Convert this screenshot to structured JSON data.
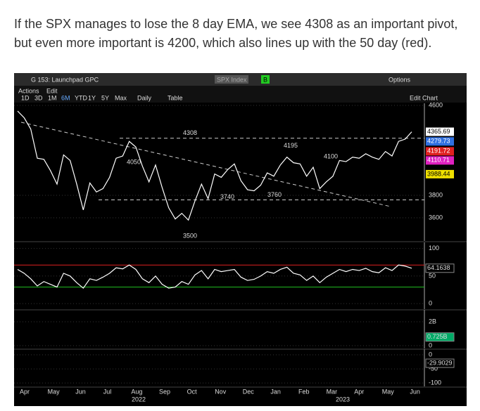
{
  "text": {
    "line1": "If the SPX manages to lose the 8 day EMA, we see 4308 as an important pivot,",
    "line2": "but even more important is 4200, which also lines up with the 50 day (red)."
  },
  "window": {
    "title": "G 153: Launchpad GPC",
    "ticker": "SPX Index",
    "badge": "B",
    "options": "Options",
    "menu": [
      "Actions",
      "Edit"
    ],
    "ranges": [
      "1D",
      "3D",
      "1M",
      "6M",
      "YTD",
      "1Y",
      "5Y",
      "Max"
    ],
    "period": "Daily",
    "table": "Table",
    "edit": "Edit Chart"
  },
  "chart_data": {
    "type": "line",
    "price": {
      "color": "#ffffff",
      "values": [
        4550,
        4490,
        4390,
        4130,
        4120,
        4020,
        3900,
        4160,
        4110,
        3900,
        3670,
        3910,
        3830,
        3860,
        3960,
        4130,
        4150,
        4280,
        4230,
        4060,
        3920,
        4070,
        3870,
        3690,
        3590,
        3640,
        3580,
        3750,
        3900,
        3770,
        3990,
        3960,
        4030,
        4080,
        3930,
        3850,
        3840,
        3890,
        4000,
        3970,
        4070,
        4140,
        4090,
        4080,
        3970,
        4050,
        3860,
        3920,
        3970,
        4110,
        4100,
        4140,
        4130,
        4170,
        4140,
        4120,
        4190,
        4150,
        4280,
        4300,
        4365
      ],
      "ylim": [
        3394,
        4619
      ],
      "yticks": [
        3600,
        3800,
        4600
      ],
      "levels": [
        4308,
        4050,
        4195,
        4100,
        3760,
        3740,
        3500
      ],
      "last_labels": [
        {
          "value": 4365.69,
          "color": "#ffffff"
        },
        {
          "value": 4279.73,
          "color": "#2f6fe0"
        },
        {
          "value": 4191.72,
          "color": "#e02020"
        },
        {
          "value": 4110.71,
          "color": "#e020c0"
        },
        {
          "value": 3988.44,
          "color": "#f0e000"
        }
      ]
    },
    "rsi": {
      "color": "#ffffff",
      "values": [
        62,
        55,
        45,
        32,
        40,
        35,
        30,
        55,
        50,
        38,
        28,
        45,
        42,
        48,
        55,
        65,
        63,
        70,
        62,
        45,
        38,
        50,
        35,
        28,
        30,
        40,
        35,
        52,
        60,
        45,
        62,
        58,
        60,
        62,
        48,
        42,
        44,
        50,
        58,
        55,
        62,
        66,
        55,
        52,
        42,
        50,
        38,
        48,
        55,
        62,
        58,
        62,
        60,
        64,
        58,
        56,
        65,
        60,
        70,
        68,
        64.1638
      ],
      "ylim": [
        -10,
        111
      ],
      "yticks": [
        0,
        50,
        100
      ],
      "last": 64.1638
    },
    "volume": {
      "ylim": [
        -235000000,
        3000000000
      ],
      "yticks": [
        0,
        {
          "value": 2000000000,
          "label": "2B"
        }
      ],
      "last": {
        "value": 725000000,
        "label": "0.725B"
      }
    },
    "oscillator": {
      "ylim": [
        -112,
        20
      ],
      "yticks": [
        0,
        -50,
        -100
      ],
      "last": -29.9029
    },
    "months": [
      "Apr",
      "May",
      "Jun",
      "Jul",
      "Aug",
      "Sep",
      "Oct",
      "Nov",
      "Dec",
      "Jan",
      "Feb",
      "Mar",
      "Apr",
      "May",
      "Jun"
    ],
    "years": [
      "2022",
      "2023"
    ]
  }
}
